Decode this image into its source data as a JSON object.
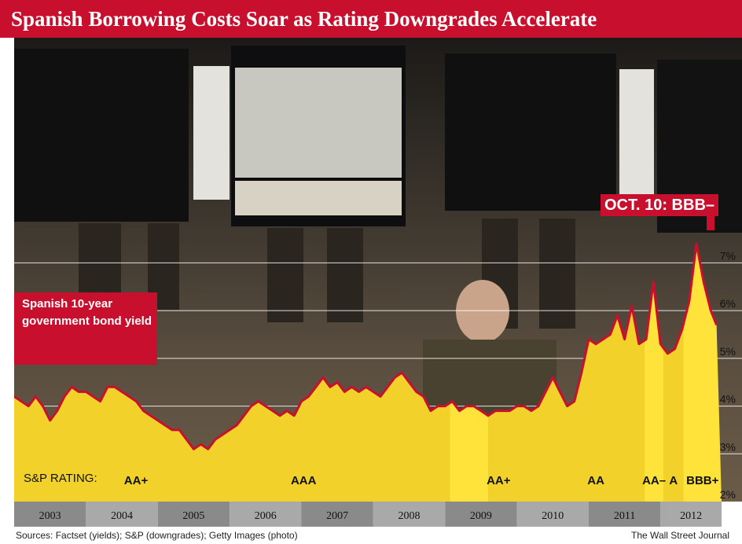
{
  "headline": "Spanish Borrowing Costs Soar as Rating Downgrades Accelerate",
  "labels": {
    "series_label": "Spanish 10-year government bond yield",
    "callout": "OCT. 10: BBB–",
    "rating_prefix": "S&P RATING:"
  },
  "footer": {
    "sources": "Sources: Factset (yields); S&P (downgrades); Getty Images (photo)",
    "credit": "The Wall Street Journal"
  },
  "colors": {
    "accent": "#c8102e",
    "fill": "#f2d22a",
    "fill_highlight": "#ffe33a",
    "axis_band": "#8a8a8a",
    "photo_dark": "#2a2622"
  },
  "chart_data": {
    "type": "area",
    "series": [
      {
        "name": "Spanish 10-year government bond yield",
        "x": [
          2003.0,
          2003.1,
          2003.2,
          2003.3,
          2003.4,
          2003.5,
          2003.6,
          2003.7,
          2003.8,
          2003.9,
          2004.0,
          2004.1,
          2004.2,
          2004.3,
          2004.4,
          2004.5,
          2004.6,
          2004.7,
          2004.8,
          2004.9,
          2005.0,
          2005.1,
          2005.2,
          2005.3,
          2005.4,
          2005.5,
          2005.6,
          2005.7,
          2005.8,
          2005.9,
          2006.0,
          2006.1,
          2006.2,
          2006.3,
          2006.4,
          2006.5,
          2006.6,
          2006.7,
          2006.8,
          2006.9,
          2007.0,
          2007.1,
          2007.2,
          2007.3,
          2007.4,
          2007.5,
          2007.6,
          2007.7,
          2007.8,
          2007.9,
          2008.0,
          2008.1,
          2008.2,
          2008.3,
          2008.4,
          2008.5,
          2008.6,
          2008.7,
          2008.8,
          2008.9,
          2009.0,
          2009.1,
          2009.2,
          2009.3,
          2009.4,
          2009.5,
          2009.6,
          2009.7,
          2009.8,
          2009.9,
          2010.0,
          2010.1,
          2010.2,
          2010.3,
          2010.4,
          2010.5,
          2010.6,
          2010.7,
          2010.8,
          2010.9,
          2011.0,
          2011.1,
          2011.2,
          2011.3,
          2011.4,
          2011.5,
          2011.6,
          2011.7,
          2011.8,
          2011.9,
          2012.0,
          2012.1,
          2012.2,
          2012.3,
          2012.4,
          2012.5,
          2012.6,
          2012.7,
          2012.78
        ],
        "y": [
          4.2,
          4.1,
          4.0,
          4.2,
          4.0,
          3.7,
          3.9,
          4.2,
          4.4,
          4.3,
          4.3,
          4.2,
          4.1,
          4.4,
          4.4,
          4.3,
          4.2,
          4.1,
          3.9,
          3.8,
          3.7,
          3.6,
          3.5,
          3.5,
          3.3,
          3.1,
          3.2,
          3.1,
          3.3,
          3.4,
          3.5,
          3.6,
          3.8,
          4.0,
          4.1,
          4.0,
          3.9,
          3.8,
          3.9,
          3.8,
          4.1,
          4.2,
          4.4,
          4.6,
          4.4,
          4.5,
          4.3,
          4.4,
          4.3,
          4.4,
          4.3,
          4.2,
          4.4,
          4.6,
          4.7,
          4.5,
          4.3,
          4.2,
          3.9,
          4.0,
          4.0,
          4.1,
          3.9,
          4.0,
          4.0,
          3.9,
          3.8,
          3.9,
          3.9,
          3.9,
          4.0,
          4.0,
          3.9,
          4.0,
          4.3,
          4.6,
          4.3,
          4.0,
          4.1,
          4.7,
          5.4,
          5.3,
          5.4,
          5.5,
          5.9,
          5.4,
          6.1,
          5.3,
          5.4,
          6.6,
          5.3,
          5.1,
          5.2,
          5.6,
          6.2,
          7.4,
          6.6,
          6.0,
          5.7
        ]
      }
    ],
    "x_categories": [
      "2003",
      "2004",
      "2005",
      "2006",
      "2007",
      "2008",
      "2009",
      "2010",
      "2011",
      "2012"
    ],
    "xlim": [
      2003,
      2012.85
    ],
    "ylim": [
      2,
      7.6
    ],
    "y_ticks": [
      2,
      3,
      4,
      5,
      6,
      7
    ],
    "y_tick_labels": [
      "2%",
      "3%",
      "4%",
      "5%",
      "6%",
      "7%"
    ],
    "grid": true,
    "ratings": [
      {
        "label": "AA+",
        "start": 2003.0,
        "end": 2004.99
      },
      {
        "label": "AAA",
        "start": 2004.99,
        "end": 2009.07
      },
      {
        "label": "AA+",
        "start": 2009.07,
        "end": 2010.42
      },
      {
        "label": "AA",
        "start": 2010.42,
        "end": 2011.78
      },
      {
        "label": "AA–",
        "start": 2011.78,
        "end": 2012.04
      },
      {
        "label": "A",
        "start": 2012.04,
        "end": 2012.32
      },
      {
        "label": "BBB+",
        "start": 2012.32,
        "end": 2012.85
      }
    ],
    "highlight_spans": [
      [
        2009.07,
        2009.6
      ],
      [
        2011.78,
        2012.04
      ],
      [
        2012.32,
        2012.85
      ]
    ],
    "title": "Spanish Borrowing Costs Soar as Rating Downgrades Accelerate"
  }
}
